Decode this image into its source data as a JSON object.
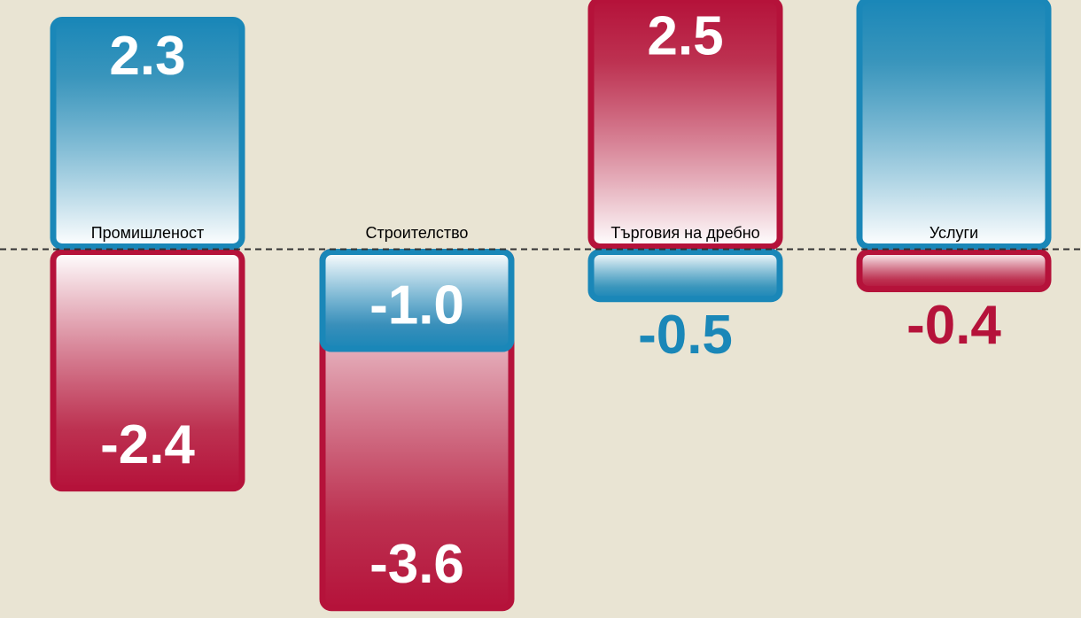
{
  "chart_data": {
    "type": "bar",
    "categories": [
      "Промишленост",
      "Строителство",
      "Търговия на дребно",
      "Услуги"
    ],
    "series": [
      {
        "color": "#b5123a",
        "values": [
          -2.4,
          -3.6,
          2.5,
          -0.4
        ],
        "value_labels": [
          "-2.4",
          "-3.6",
          "2.5",
          "-0.4"
        ]
      },
      {
        "color": "#1a87b8",
        "values": [
          2.3,
          -1.0,
          -0.5,
          2.5
        ],
        "value_labels": [
          "2.3",
          "-1.0",
          "-0.5",
          null
        ]
      }
    ],
    "ylim": [
      -3.7,
      2.5
    ]
  }
}
